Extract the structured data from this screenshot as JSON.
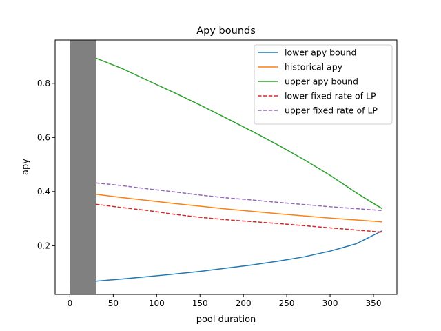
{
  "chart_data": {
    "type": "line",
    "title": "Apy bounds",
    "xlabel": "pool duration",
    "ylabel": "apy",
    "xlim": [
      -17,
      377
    ],
    "ylim": [
      0.02,
      0.96
    ],
    "xticks": [
      0,
      50,
      100,
      150,
      200,
      250,
      300,
      350
    ],
    "yticks": [
      0.2,
      0.4,
      0.6,
      0.8
    ],
    "ytick_labels": [
      "0.2",
      "0.4",
      "0.6",
      "0.8"
    ],
    "grid": false,
    "legend_position": "top-right",
    "shaded_region": {
      "x_start": 0,
      "x_end": 30,
      "color": "#808080"
    },
    "series": [
      {
        "name": "lower apy bound",
        "color": "#1f77b4",
        "style": "solid",
        "x": [
          0,
          30,
          60,
          90,
          120,
          150,
          180,
          210,
          240,
          270,
          300,
          330,
          360
        ],
        "y": [
          0.065,
          0.069,
          0.077,
          0.086,
          0.095,
          0.105,
          0.117,
          0.129,
          0.143,
          0.159,
          0.18,
          0.207,
          0.255
        ]
      },
      {
        "name": "historical apy",
        "color": "#ff7f0e",
        "style": "solid",
        "x": [
          30,
          60,
          90,
          120,
          150,
          180,
          210,
          240,
          270,
          300,
          330,
          360
        ],
        "y": [
          0.39,
          0.378,
          0.367,
          0.356,
          0.346,
          0.336,
          0.327,
          0.318,
          0.31,
          0.302,
          0.295,
          0.288
        ]
      },
      {
        "name": "upper apy bound",
        "color": "#2ca02c",
        "style": "solid",
        "x": [
          0,
          30,
          60,
          90,
          120,
          150,
          180,
          210,
          240,
          270,
          300,
          330,
          345,
          360
        ],
        "y": [
          0.935,
          0.893,
          0.855,
          0.81,
          0.766,
          0.72,
          0.672,
          0.623,
          0.572,
          0.518,
          0.46,
          0.396,
          0.366,
          0.337
        ]
      },
      {
        "name": "lower fixed rate of LP",
        "color": "#d62728",
        "style": "dashed",
        "x": [
          30,
          60,
          90,
          120,
          150,
          180,
          210,
          240,
          270,
          300,
          330,
          360
        ],
        "y": [
          0.353,
          0.341,
          0.33,
          0.316,
          0.305,
          0.296,
          0.289,
          0.282,
          0.274,
          0.266,
          0.258,
          0.25
        ]
      },
      {
        "name": "upper fixed rate of LP",
        "color": "#9467bd",
        "style": "dashed",
        "x": [
          30,
          60,
          90,
          120,
          150,
          180,
          210,
          240,
          270,
          300,
          330,
          360
        ],
        "y": [
          0.432,
          0.422,
          0.41,
          0.399,
          0.387,
          0.377,
          0.369,
          0.36,
          0.352,
          0.344,
          0.337,
          0.33
        ]
      }
    ]
  }
}
